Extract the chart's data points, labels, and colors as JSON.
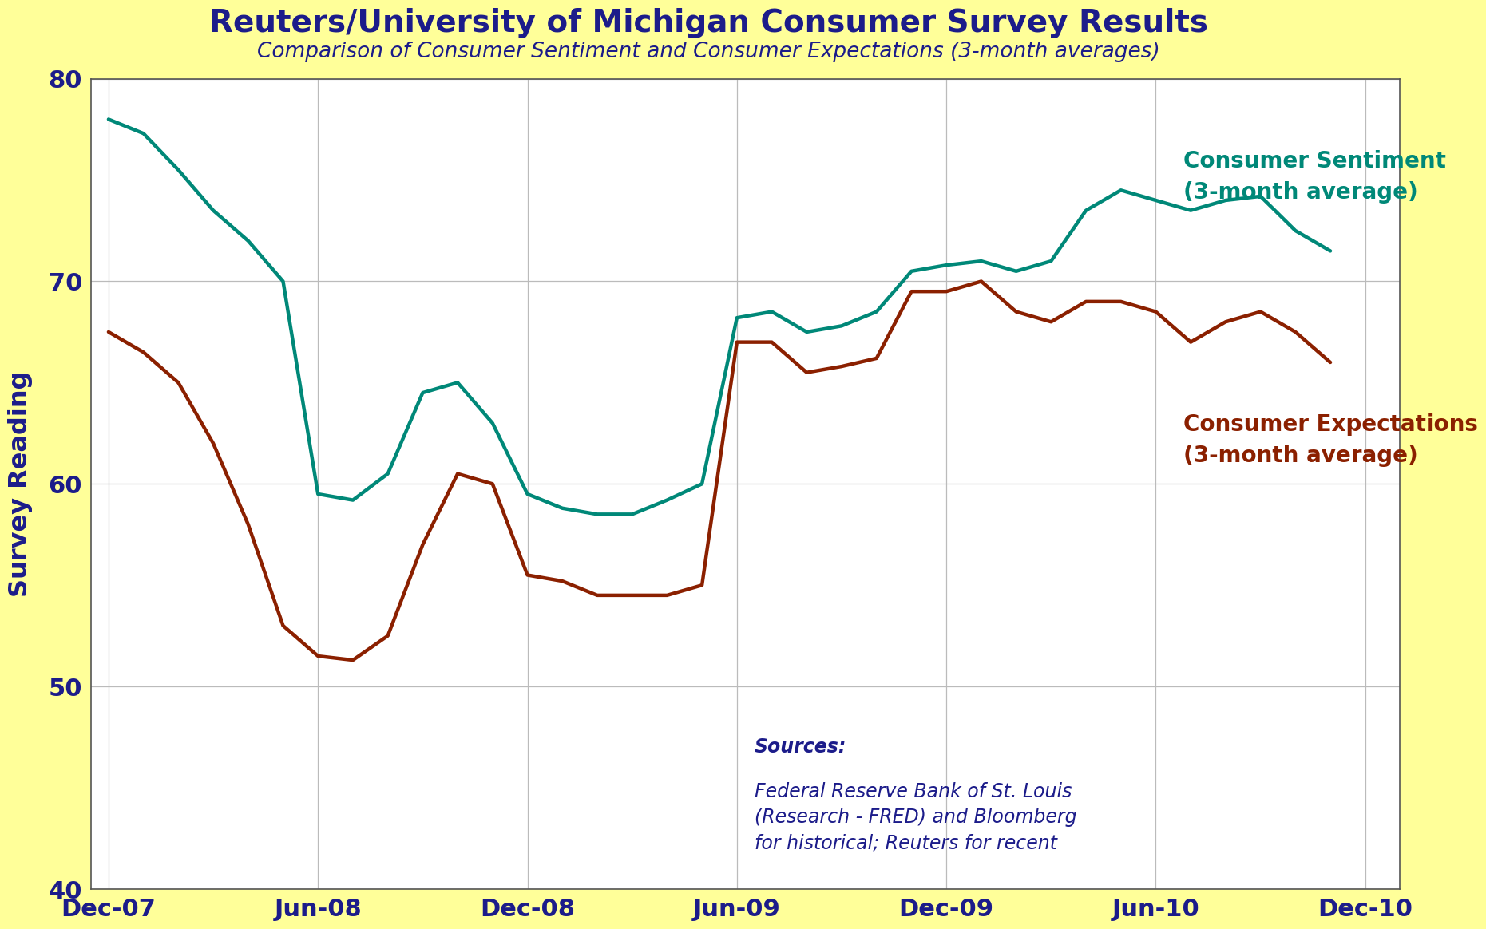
{
  "title": "Reuters/University of Michigan Consumer Survey Results",
  "subtitle": "Comparison of Consumer Sentiment and Consumer Expectations (3-month averages)",
  "ylabel": "Survey Reading",
  "fig_bg": "#FFFF99",
  "plot_bg": "#FFFFFF",
  "title_color": "#1C1C8A",
  "sentiment_color": "#008878",
  "expectations_color": "#8B2000",
  "grid_color": "#BBBBBB",
  "ylim": [
    40,
    80
  ],
  "yticks": [
    40,
    50,
    60,
    70,
    80
  ],
  "xtick_labels": [
    "Dec-07",
    "Jun-08",
    "Dec-08",
    "Jun-09",
    "Dec-09",
    "Jun-10",
    "Dec-10"
  ],
  "x_tick_positions": [
    0,
    6,
    12,
    18,
    24,
    30,
    36
  ],
  "xlim": [
    -0.5,
    37.0
  ],
  "sentiment_label": "Consumer Sentiment\n(3-month average)",
  "expectations_label": "Consumer Expectations\n(3-month average)",
  "source_bold": "Sources:",
  "source_rest": "Federal Reserve Bank of St. Louis\n(Research - FRED) and Bloomberg\nfor historical; Reuters for recent",
  "x": [
    0,
    1,
    2,
    3,
    4,
    5,
    6,
    7,
    8,
    9,
    10,
    11,
    12,
    13,
    14,
    15,
    16,
    17,
    18,
    19,
    20,
    21,
    22,
    23,
    24,
    25,
    26,
    27,
    28,
    29,
    30,
    31,
    32,
    33,
    34,
    35
  ],
  "sentiment": [
    78.0,
    77.3,
    75.5,
    73.5,
    72.0,
    70.0,
    59.5,
    59.2,
    60.5,
    64.5,
    65.0,
    63.0,
    59.5,
    58.8,
    58.5,
    58.5,
    59.2,
    60.0,
    68.2,
    68.5,
    67.5,
    67.8,
    68.5,
    70.5,
    70.8,
    71.0,
    70.5,
    71.0,
    73.5,
    74.5,
    74.0,
    73.5,
    74.0,
    74.2,
    72.5,
    71.5
  ],
  "expectations": [
    67.5,
    66.5,
    65.0,
    62.0,
    58.0,
    53.0,
    51.5,
    51.3,
    52.5,
    57.0,
    60.5,
    60.0,
    55.5,
    55.2,
    54.5,
    54.5,
    54.5,
    55.0,
    67.0,
    67.0,
    65.5,
    65.8,
    66.2,
    69.5,
    69.5,
    70.0,
    68.5,
    68.0,
    69.0,
    69.0,
    68.5,
    67.0,
    68.0,
    68.5,
    67.5,
    66.0
  ]
}
